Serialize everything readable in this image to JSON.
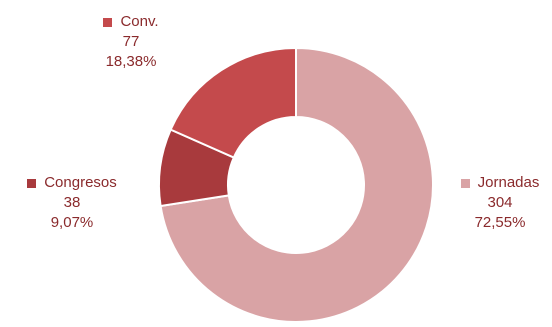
{
  "chart_data": {
    "type": "pie",
    "variant": "donut",
    "title": "",
    "legend": "none",
    "slices": [
      {
        "name": "Jornadas",
        "value": 304,
        "percent": "72,55%",
        "color": "#d9a3a5"
      },
      {
        "name": "Congresos",
        "value": 38,
        "percent": "9,07%",
        "color": "#a83a3d"
      },
      {
        "name": "Conv.",
        "value": 77,
        "percent": "18,38%",
        "color": "#c44a4c"
      }
    ],
    "label_color": "#8a2a2c",
    "slice_border_color": "#ffffff"
  }
}
